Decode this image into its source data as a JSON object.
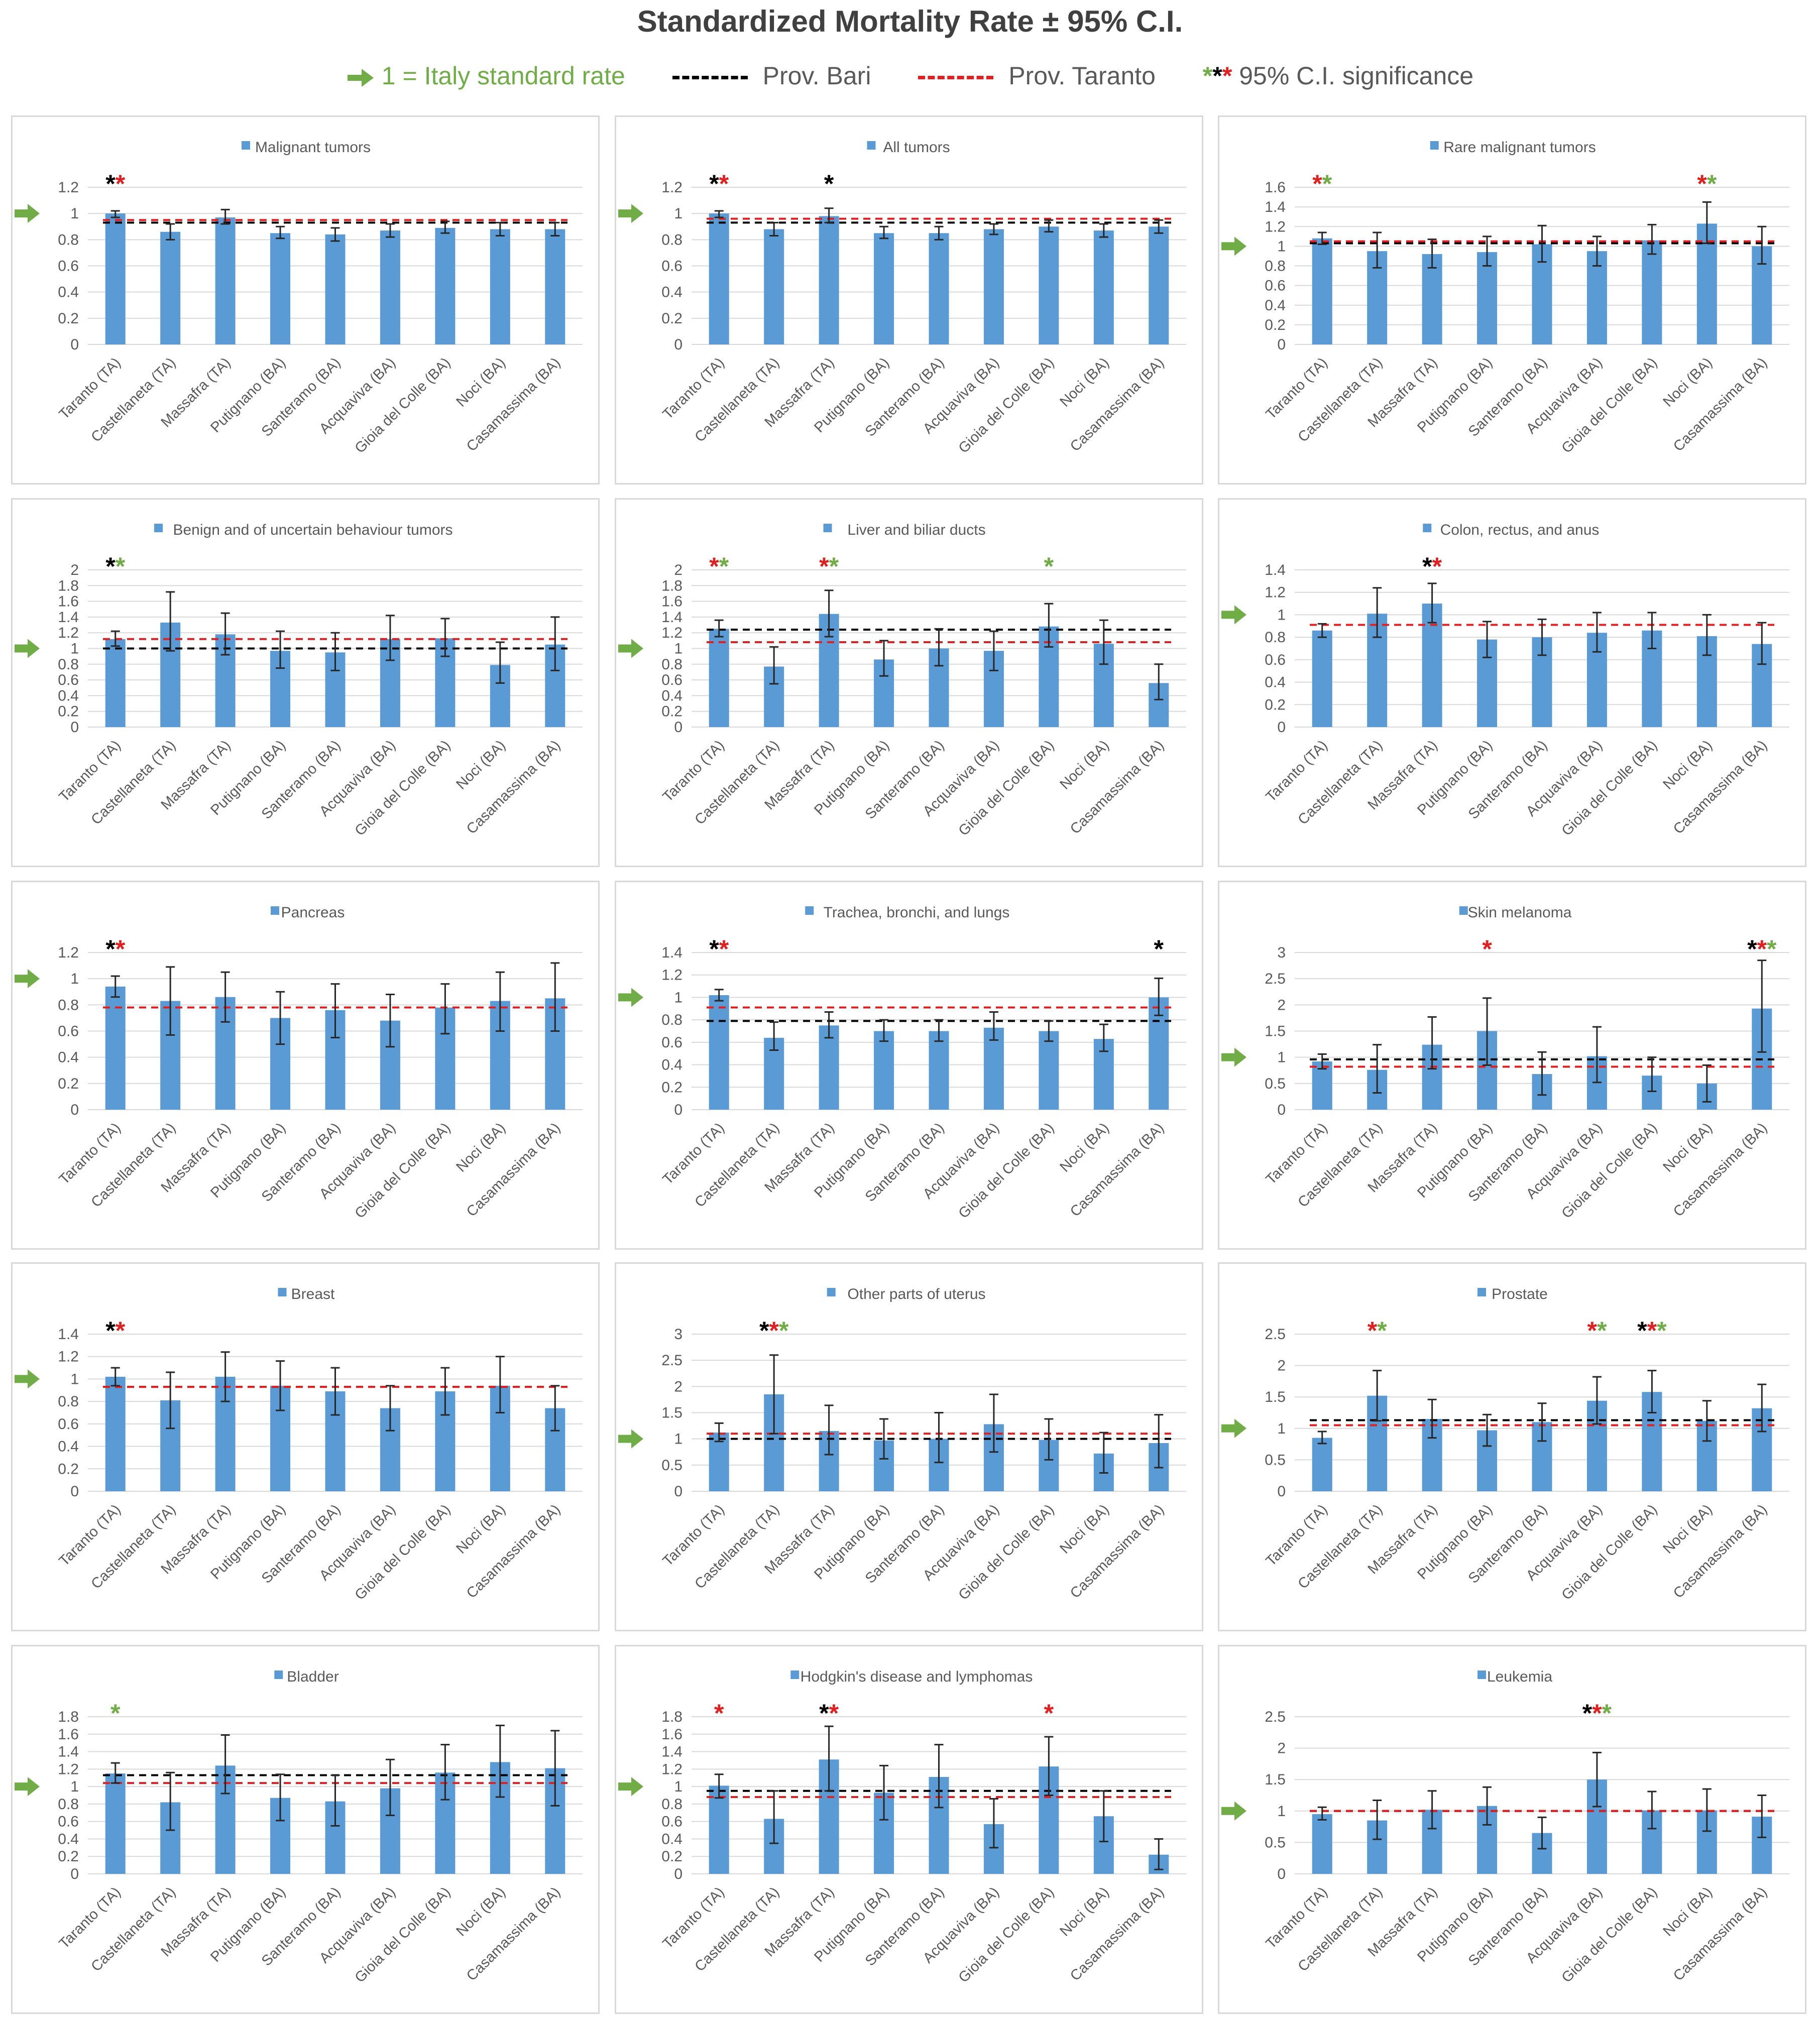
{
  "title": "Standardized Mortality Rate ± 95% C.I.",
  "legend": {
    "italy": "1 = Italy standard rate",
    "bari": "Prov. Bari",
    "taranto": "Prov. Taranto",
    "significance": "95% C.I. significance"
  },
  "colors": {
    "bar": "#5b9bd5",
    "bari_line": "#000000",
    "taranto_line": "#e02020",
    "italy_arrow": "#70ad47",
    "star_black": "#000000",
    "star_red": "#e02020",
    "star_green": "#70ad47"
  },
  "categories": [
    "Taranto (TA)",
    "Castellaneta (TA)",
    "Massafra (TA)",
    "Putignano (BA)",
    "Santeramo (BA)",
    "Acquaviva (BA)",
    "Gioia del Colle (BA)",
    "Noci (BA)",
    "Casamassima (BA)"
  ],
  "chart_data": [
    {
      "type": "bar",
      "title": "Malignant tumors",
      "ylim": [
        0,
        1.2
      ],
      "yticks": [
        "0",
        "0.2",
        "0.4",
        "0.6",
        "0.8",
        "1",
        "1.2"
      ],
      "values": [
        1.0,
        0.86,
        0.97,
        0.85,
        0.84,
        0.87,
        0.89,
        0.88,
        0.88
      ],
      "ci_low": [
        0.97,
        0.8,
        0.92,
        0.81,
        0.79,
        0.82,
        0.85,
        0.83,
        0.83
      ],
      "ci_high": [
        1.02,
        0.92,
        1.03,
        0.9,
        0.89,
        0.92,
        0.94,
        0.93,
        0.93
      ],
      "bari": 0.93,
      "taranto": 0.95,
      "stars": [
        [
          "black",
          "red"
        ],
        [],
        [],
        [],
        [],
        [],
        [],
        [],
        []
      ]
    },
    {
      "type": "bar",
      "title": "All tumors",
      "ylim": [
        0,
        1.2
      ],
      "yticks": [
        "0",
        "0.2",
        "0.4",
        "0.6",
        "0.8",
        "1",
        "1.2"
      ],
      "values": [
        1.0,
        0.88,
        0.98,
        0.85,
        0.85,
        0.88,
        0.9,
        0.87,
        0.9
      ],
      "ci_low": [
        0.97,
        0.83,
        0.93,
        0.81,
        0.8,
        0.84,
        0.86,
        0.82,
        0.85
      ],
      "ci_high": [
        1.02,
        0.93,
        1.04,
        0.9,
        0.9,
        0.92,
        0.95,
        0.92,
        0.95
      ],
      "bari": 0.93,
      "taranto": 0.96,
      "stars": [
        [
          "black",
          "red"
        ],
        [],
        [
          "black"
        ],
        [],
        [],
        [],
        [],
        [],
        []
      ]
    },
    {
      "type": "bar",
      "title": "Rare malignant tumors",
      "ylim": [
        0,
        1.6
      ],
      "yticks": [
        "0",
        "0.2",
        "0.4",
        "0.6",
        "0.8",
        "1",
        "1.2",
        "1.4",
        "1.6"
      ],
      "values": [
        1.08,
        0.95,
        0.92,
        0.94,
        1.02,
        0.95,
        1.06,
        1.23,
        1.0
      ],
      "ci_low": [
        1.02,
        0.78,
        0.78,
        0.8,
        0.84,
        0.8,
        0.92,
        1.03,
        0.82
      ],
      "ci_high": [
        1.14,
        1.14,
        1.07,
        1.1,
        1.21,
        1.1,
        1.22,
        1.45,
        1.2
      ],
      "bari": 1.03,
      "taranto": 1.05,
      "stars": [
        [
          "red",
          "green"
        ],
        [],
        [],
        [],
        [],
        [],
        [],
        [
          "red",
          "green"
        ],
        []
      ]
    },
    {
      "type": "bar",
      "title": "Benign and of uncertain behaviour tumors",
      "ylim": [
        0,
        2
      ],
      "yticks": [
        "0",
        "0.2",
        "0.4",
        "0.6",
        "0.8",
        "1",
        "1.2",
        "1.4",
        "1.6",
        "1.8",
        "2"
      ],
      "values": [
        1.12,
        1.33,
        1.18,
        0.97,
        0.95,
        1.12,
        1.13,
        0.79,
        1.05
      ],
      "ci_low": [
        1.03,
        0.97,
        0.92,
        0.75,
        0.72,
        0.85,
        0.9,
        0.56,
        0.72
      ],
      "ci_high": [
        1.22,
        1.72,
        1.45,
        1.22,
        1.2,
        1.42,
        1.38,
        1.08,
        1.4
      ],
      "bari": 1.0,
      "taranto": 1.12,
      "stars": [
        [
          "black",
          "green"
        ],
        [],
        [],
        [],
        [],
        [],
        [],
        [],
        []
      ]
    },
    {
      "type": "bar",
      "title": "Liver and biliar ducts",
      "ylim": [
        0,
        2
      ],
      "yticks": [
        "0",
        "0.2",
        "0.4",
        "0.6",
        "0.8",
        "1",
        "1.2",
        "1.4",
        "1.6",
        "1.8",
        "2"
      ],
      "values": [
        1.25,
        0.77,
        1.44,
        0.86,
        1.0,
        0.97,
        1.28,
        1.06,
        0.56
      ],
      "ci_low": [
        1.15,
        0.55,
        1.15,
        0.65,
        0.78,
        0.72,
        1.02,
        0.8,
        0.35
      ],
      "ci_high": [
        1.36,
        1.02,
        1.74,
        1.1,
        1.25,
        1.22,
        1.57,
        1.36,
        0.8
      ],
      "bari": 1.24,
      "taranto": 1.08,
      "stars": [
        [
          "red",
          "green"
        ],
        [],
        [
          "red",
          "green"
        ],
        [],
        [],
        [],
        [
          "green"
        ],
        [],
        []
      ]
    },
    {
      "type": "bar",
      "title": "Colon, rectus, and anus",
      "ylim": [
        0,
        1.4
      ],
      "yticks": [
        "0",
        "0.2",
        "0.4",
        "0.6",
        "0.8",
        "1",
        "1.2",
        "1.4"
      ],
      "values": [
        0.86,
        1.01,
        1.1,
        0.78,
        0.8,
        0.84,
        0.86,
        0.81,
        0.74
      ],
      "ci_low": [
        0.8,
        0.8,
        0.93,
        0.62,
        0.64,
        0.67,
        0.7,
        0.64,
        0.56
      ],
      "ci_high": [
        0.92,
        1.24,
        1.28,
        0.94,
        0.96,
        1.02,
        1.02,
        1.0,
        0.93
      ],
      "bari": 0.91,
      "taranto": 0.91,
      "stars": [
        [],
        [],
        [
          "black",
          "red"
        ],
        [],
        [],
        [],
        [],
        [],
        []
      ]
    },
    {
      "type": "bar",
      "title": "Pancreas",
      "ylim": [
        0,
        1.2
      ],
      "yticks": [
        "0",
        "0.2",
        "0.4",
        "0.6",
        "0.8",
        "1",
        "1.2"
      ],
      "values": [
        0.94,
        0.83,
        0.86,
        0.7,
        0.76,
        0.68,
        0.78,
        0.83,
        0.85
      ],
      "ci_low": [
        0.86,
        0.57,
        0.67,
        0.5,
        0.55,
        0.48,
        0.58,
        0.6,
        0.6
      ],
      "ci_high": [
        1.02,
        1.09,
        1.05,
        0.9,
        0.96,
        0.88,
        0.96,
        1.05,
        1.12
      ],
      "bari": 0.78,
      "taranto": 0.78,
      "stars": [
        [
          "black",
          "red"
        ],
        [],
        [],
        [],
        [],
        [],
        [],
        [],
        []
      ]
    },
    {
      "type": "bar",
      "title": "Trachea, bronchi, and lungs",
      "ylim": [
        0,
        1.4
      ],
      "yticks": [
        "0",
        "0.2",
        "0.4",
        "0.6",
        "0.8",
        "1",
        "1.2",
        "1.4"
      ],
      "values": [
        1.02,
        0.64,
        0.75,
        0.7,
        0.7,
        0.73,
        0.7,
        0.63,
        1.0
      ],
      "ci_low": [
        0.97,
        0.53,
        0.64,
        0.61,
        0.61,
        0.62,
        0.61,
        0.52,
        0.84
      ],
      "ci_high": [
        1.07,
        0.78,
        0.87,
        0.8,
        0.8,
        0.87,
        0.79,
        0.76,
        1.17
      ],
      "bari": 0.79,
      "taranto": 0.91,
      "stars": [
        [
          "black",
          "red"
        ],
        [],
        [],
        [],
        [],
        [],
        [],
        [],
        [
          "black"
        ]
      ]
    },
    {
      "type": "bar",
      "title": "Skin melanoma",
      "ylim": [
        0,
        3
      ],
      "yticks": [
        "0",
        "0.5",
        "1",
        "1.5",
        "2",
        "2.5",
        "3"
      ],
      "values": [
        0.92,
        0.76,
        1.24,
        1.5,
        0.68,
        1.02,
        0.65,
        0.5,
        1.93
      ],
      "ci_low": [
        0.78,
        0.32,
        0.78,
        0.85,
        0.28,
        0.52,
        0.35,
        0.15,
        1.1
      ],
      "ci_high": [
        1.06,
        1.24,
        1.77,
        2.13,
        1.1,
        1.58,
        1.0,
        0.85,
        2.85
      ],
      "bari": 0.96,
      "taranto": 0.82,
      "stars": [
        [],
        [],
        [],
        [
          "red"
        ],
        [],
        [],
        [],
        [],
        [
          "black",
          "red",
          "green"
        ]
      ]
    },
    {
      "type": "bar",
      "title": "Breast",
      "ylim": [
        0,
        1.4
      ],
      "yticks": [
        "0",
        "0.2",
        "0.4",
        "0.6",
        "0.8",
        "1",
        "1.2",
        "1.4"
      ],
      "values": [
        1.02,
        0.81,
        1.02,
        0.94,
        0.89,
        0.74,
        0.89,
        0.94,
        0.74
      ],
      "ci_low": [
        0.94,
        0.56,
        0.8,
        0.72,
        0.68,
        0.54,
        0.68,
        0.7,
        0.54
      ],
      "ci_high": [
        1.1,
        1.06,
        1.24,
        1.16,
        1.1,
        0.94,
        1.1,
        1.2,
        0.94
      ],
      "bari": 0.93,
      "taranto": 0.93,
      "stars": [
        [
          "black",
          "red"
        ],
        [],
        [],
        [],
        [],
        [],
        [],
        [],
        []
      ]
    },
    {
      "type": "bar",
      "title": "Other parts of uterus",
      "ylim": [
        0,
        3
      ],
      "yticks": [
        "0",
        "0.5",
        "1",
        "1.5",
        "2",
        "2.5",
        "3"
      ],
      "values": [
        1.12,
        1.85,
        1.15,
        0.97,
        1.0,
        1.28,
        0.98,
        0.72,
        0.92
      ],
      "ci_low": [
        0.95,
        1.1,
        0.7,
        0.62,
        0.55,
        0.75,
        0.6,
        0.35,
        0.45
      ],
      "ci_high": [
        1.3,
        2.6,
        1.64,
        1.38,
        1.5,
        1.85,
        1.38,
        1.12,
        1.46
      ],
      "bari": 1.0,
      "taranto": 1.1,
      "stars": [
        [],
        [
          "black",
          "red",
          "green"
        ],
        [],
        [],
        [],
        [],
        [],
        [],
        []
      ]
    },
    {
      "type": "bar",
      "title": "Prostate",
      "ylim": [
        0,
        2.5
      ],
      "yticks": [
        "0",
        "0.5",
        "1",
        "1.5",
        "2",
        "2.5"
      ],
      "values": [
        0.85,
        1.52,
        1.15,
        0.97,
        1.1,
        1.44,
        1.58,
        1.12,
        1.32
      ],
      "ci_low": [
        0.76,
        1.12,
        0.85,
        0.72,
        0.8,
        1.07,
        1.25,
        0.8,
        0.95
      ],
      "ci_high": [
        0.95,
        1.92,
        1.46,
        1.22,
        1.4,
        1.82,
        1.92,
        1.44,
        1.7
      ],
      "bari": 1.13,
      "taranto": 1.05,
      "stars": [
        [],
        [
          "red",
          "green"
        ],
        [],
        [],
        [],
        [
          "red",
          "green"
        ],
        [
          "black",
          "red",
          "green"
        ],
        [],
        []
      ]
    },
    {
      "type": "bar",
      "title": "Bladder",
      "ylim": [
        0,
        1.8
      ],
      "yticks": [
        "0",
        "0.2",
        "0.4",
        "0.6",
        "0.8",
        "1",
        "1.2",
        "1.4",
        "1.6",
        "1.8"
      ],
      "values": [
        1.15,
        0.82,
        1.24,
        0.87,
        0.83,
        0.98,
        1.16,
        1.28,
        1.21
      ],
      "ci_low": [
        1.04,
        0.5,
        0.92,
        0.61,
        0.55,
        0.67,
        0.85,
        0.88,
        0.78
      ],
      "ci_high": [
        1.27,
        1.16,
        1.59,
        1.14,
        1.13,
        1.31,
        1.48,
        1.7,
        1.64
      ],
      "bari": 1.13,
      "taranto": 1.04,
      "stars": [
        [
          "green"
        ],
        [],
        [],
        [],
        [],
        [],
        [],
        [],
        []
      ]
    },
    {
      "type": "bar",
      "title": "Hodgkin's disease and lymphomas",
      "ylim": [
        0,
        1.8
      ],
      "yticks": [
        "0",
        "0.2",
        "0.4",
        "0.6",
        "0.8",
        "1",
        "1.2",
        "1.4",
        "1.6",
        "1.8"
      ],
      "values": [
        1.01,
        0.63,
        1.31,
        0.93,
        1.11,
        0.57,
        1.23,
        0.66,
        0.22
      ],
      "ci_low": [
        0.87,
        0.35,
        0.95,
        0.62,
        0.76,
        0.3,
        0.9,
        0.37,
        0.05
      ],
      "ci_high": [
        1.14,
        0.95,
        1.69,
        1.24,
        1.48,
        0.86,
        1.57,
        0.95,
        0.4
      ],
      "bari": 0.95,
      "taranto": 0.88,
      "stars": [
        [
          "red"
        ],
        [],
        [
          "black",
          "red"
        ],
        [],
        [],
        [],
        [
          "red"
        ],
        [],
        []
      ]
    },
    {
      "type": "bar",
      "title": "Leukemia",
      "ylim": [
        0,
        2.5
      ],
      "yticks": [
        "0",
        "0.5",
        "1",
        "1.5",
        "2",
        "2.5"
      ],
      "values": [
        0.95,
        0.85,
        1.02,
        1.08,
        0.65,
        1.5,
        1.01,
        1.01,
        0.91
      ],
      "ci_low": [
        0.86,
        0.55,
        0.72,
        0.78,
        0.4,
        1.07,
        0.72,
        0.68,
        0.58
      ],
      "ci_high": [
        1.06,
        1.17,
        1.32,
        1.38,
        0.9,
        1.93,
        1.31,
        1.35,
        1.25
      ],
      "bari": 1.0,
      "taranto": 1.0,
      "stars": [
        [],
        [],
        [],
        [],
        [],
        [
          "black",
          "red",
          "green"
        ],
        [],
        [],
        []
      ]
    }
  ]
}
